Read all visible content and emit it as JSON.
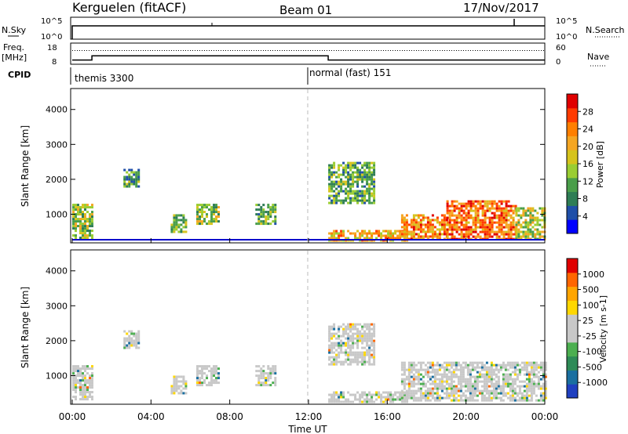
{
  "header": {
    "title": "Kerguelen (fitACF)",
    "beam": "Beam 01",
    "date": "17/Nov/2017"
  },
  "status_panels": {
    "nsky_label": "N.Sky",
    "nsearch_label": "N.Search",
    "nsky_ticks": [
      "10^5",
      "10^0"
    ],
    "nsearch_ticks": [
      "10^5",
      "10^0"
    ],
    "freq_label": "Freq.",
    "freq_unit": "[MHz]",
    "freq_ticks": [
      "18",
      "8"
    ],
    "nave_label": "Nave",
    "nave_ticks": [
      "60",
      "0"
    ],
    "cpid_label": "CPID",
    "cpid_modes": [
      {
        "name": "themis 3300",
        "start_hour": 0,
        "end_hour": 12
      },
      {
        "name": "normal (fast) 151",
        "start_hour": 12,
        "end_hour": 24
      }
    ],
    "freq_steps": [
      {
        "start_hour": 0,
        "end_hour": 1,
        "value_mhz": 10
      },
      {
        "start_hour": 1,
        "end_hour": 13,
        "value_mhz": 12
      },
      {
        "start_hour": 13,
        "end_hour": 24,
        "value_mhz": 10
      }
    ],
    "nave_level": 0.65
  },
  "chart_data": [
    {
      "type": "heatmap",
      "name": "power",
      "ylabel": "Slant Range [km]",
      "xlabel": "",
      "ylim": [
        180,
        4600
      ],
      "xlim": [
        0,
        24
      ],
      "yticks": [
        "4000",
        "3000",
        "2000",
        "1000"
      ],
      "colorbar_label": "Power [dB]",
      "colorbar_ticks": [
        "28",
        "24",
        "20",
        "16",
        "12",
        "8",
        "4"
      ],
      "colorbar_colors": [
        "#0000ff",
        "#1f4fa8",
        "#2e7d55",
        "#4a9e4a",
        "#9acd32",
        "#d6c31c",
        "#f5a623",
        "#ff7f00",
        "#ff3b00",
        "#e00000"
      ],
      "regions": [
        {
          "hours": [
            0.0,
            1.0
          ],
          "range_km": [
            300,
            1300
          ],
          "level": 0.45
        },
        {
          "hours": [
            2.6,
            3.4
          ],
          "range_km": [
            1800,
            2300
          ],
          "level": 0.3
        },
        {
          "hours": [
            5.0,
            5.8
          ],
          "range_km": [
            500,
            1000
          ],
          "level": 0.4
        },
        {
          "hours": [
            6.3,
            7.4
          ],
          "range_km": [
            700,
            1300
          ],
          "level": 0.45
        },
        {
          "hours": [
            9.3,
            10.3
          ],
          "range_km": [
            700,
            1300
          ],
          "level": 0.35
        },
        {
          "hours": [
            13.0,
            15.3
          ],
          "range_km": [
            1300,
            2500
          ],
          "level": 0.35
        },
        {
          "hours": [
            13.0,
            17.0
          ],
          "range_km": [
            280,
            550
          ],
          "level": 0.65
        },
        {
          "hours": [
            16.7,
            19.0
          ],
          "range_km": [
            300,
            1000
          ],
          "level": 0.75
        },
        {
          "hours": [
            19.0,
            22.5
          ],
          "range_km": [
            300,
            1400
          ],
          "level": 0.8
        },
        {
          "hours": [
            22.5,
            24.0
          ],
          "range_km": [
            300,
            1200
          ],
          "level": 0.5
        }
      ]
    },
    {
      "type": "heatmap",
      "name": "velocity",
      "ylabel": "Slant Range [km]",
      "xlabel": "Time UT",
      "ylim": [
        180,
        4600
      ],
      "xlim": [
        0,
        24
      ],
      "yticks": [
        "4000",
        "3000",
        "2000",
        "1000"
      ],
      "xticks": [
        "00:00",
        "04:00",
        "08:00",
        "12:00",
        "16:00",
        "20:00",
        "00:00"
      ],
      "colorbar_label": "Velocity [m s-1]",
      "colorbar_ticks": [
        "1000",
        "500",
        "100",
        "25",
        "-25",
        "-100",
        "-500",
        "-1000"
      ],
      "colorbar_colors": [
        "#2040c0",
        "#1a6fa0",
        "#2e8b57",
        "#4caf50",
        "#c8c8c8",
        "#c8c8c8",
        "#ffd700",
        "#ffa500",
        "#ff6600",
        "#e00000"
      ],
      "regions": [
        {
          "hours": [
            0.0,
            1.0
          ],
          "range_km": [
            300,
            1300
          ],
          "level": 0.5
        },
        {
          "hours": [
            2.6,
            3.4
          ],
          "range_km": [
            1800,
            2300
          ],
          "level": 0.5
        },
        {
          "hours": [
            5.0,
            5.8
          ],
          "range_km": [
            500,
            1000
          ],
          "level": 0.5
        },
        {
          "hours": [
            6.3,
            7.4
          ],
          "range_km": [
            700,
            1300
          ],
          "level": 0.5
        },
        {
          "hours": [
            9.3,
            10.3
          ],
          "range_km": [
            700,
            1300
          ],
          "level": 0.5
        },
        {
          "hours": [
            13.0,
            15.3
          ],
          "range_km": [
            1300,
            2500
          ],
          "level": 0.5
        },
        {
          "hours": [
            13.0,
            17.0
          ],
          "range_km": [
            280,
            550
          ],
          "level": 0.5
        },
        {
          "hours": [
            16.7,
            24.0
          ],
          "range_km": [
            300,
            1400
          ],
          "level": 0.5
        }
      ]
    }
  ]
}
